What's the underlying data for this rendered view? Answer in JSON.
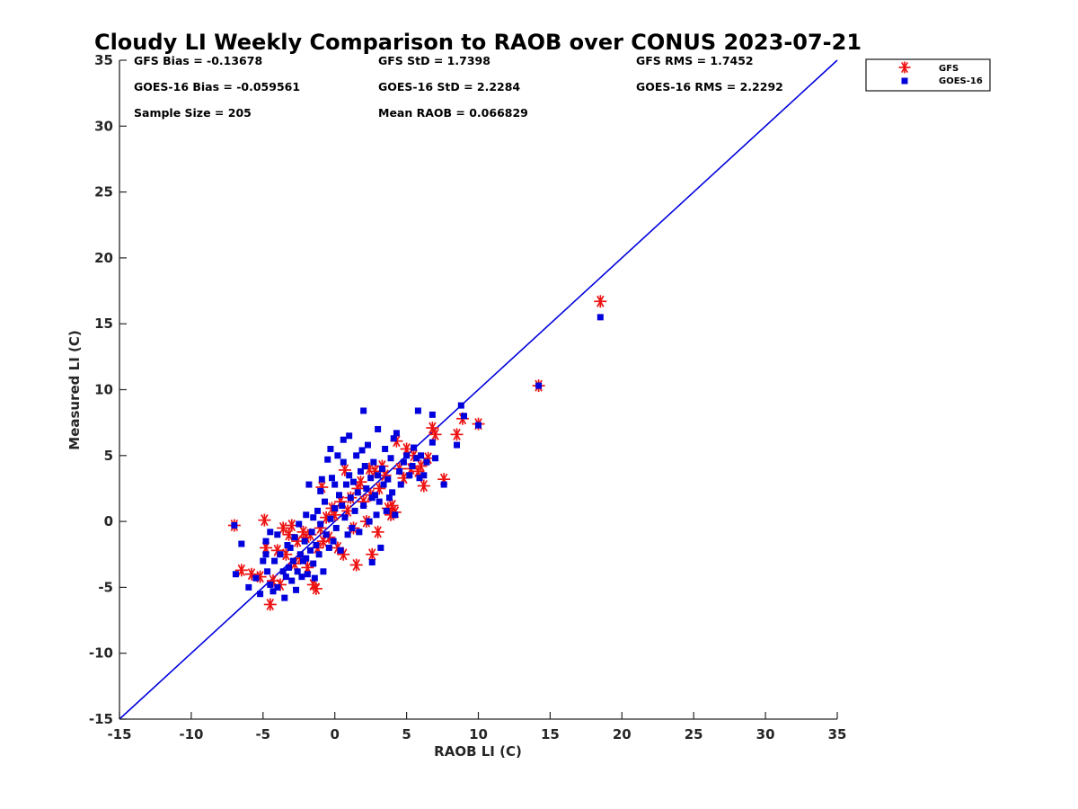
{
  "chart_data": {
    "type": "scatter",
    "title": "Cloudy LI Weekly Comparison to RAOB over CONUS 2023-07-21",
    "xlabel": "RAOB LI (C)",
    "ylabel": "Measured LI (C)",
    "xlim": [
      -15,
      35
    ],
    "ylim": [
      -15,
      35
    ],
    "xticks": [
      "-15",
      "-10",
      "-5",
      "0",
      "5",
      "10",
      "15",
      "20",
      "25",
      "30",
      "35"
    ],
    "yticks": [
      "-15",
      "-10",
      "-5",
      "0",
      "5",
      "10",
      "15",
      "20",
      "25",
      "30",
      "35"
    ],
    "grid": false,
    "legend_position": "outside-top-right",
    "stats": [
      "GFS Bias = -0.13678",
      "GFS StD = 1.7398",
      "GFS RMS = 1.7452",
      "GOES-16 Bias = -0.059561",
      "GOES-16 StD = 2.2284",
      "GOES-16 RMS = 2.2292",
      "Sample Size = 205",
      "Mean RAOB = 0.066829"
    ],
    "reference_line": {
      "x": [
        -15,
        35
      ],
      "y": [
        -15,
        35
      ],
      "color": "#0000dd"
    },
    "series": [
      {
        "name": "GFS",
        "marker": "asterisk",
        "color": "#ee1111",
        "points": [
          [
            -7,
            -0.3
          ],
          [
            -6.5,
            -3.7
          ],
          [
            -5.8,
            -4.0
          ],
          [
            -5.2,
            -4.2
          ],
          [
            -4.9,
            0.1
          ],
          [
            -4.8,
            -2.0
          ],
          [
            -4.5,
            -6.3
          ],
          [
            -4.3,
            -4.5
          ],
          [
            -4.0,
            -2.2
          ],
          [
            -3.8,
            -4.8
          ],
          [
            -3.6,
            -0.5
          ],
          [
            -3.4,
            -2.5
          ],
          [
            -3.2,
            -1.0
          ],
          [
            -3.0,
            -0.3
          ],
          [
            -2.8,
            -3.2
          ],
          [
            -2.6,
            -1.5
          ],
          [
            -2.4,
            -2.8
          ],
          [
            -2.2,
            -0.8
          ],
          [
            -2.0,
            -1.2
          ],
          [
            -1.9,
            -3.5
          ],
          [
            -1.7,
            -1.0
          ],
          [
            -1.5,
            -4.8
          ],
          [
            -1.3,
            -5.1
          ],
          [
            -1.2,
            -2.0
          ],
          [
            -1.0,
            -0.5
          ],
          [
            -0.9,
            2.6
          ],
          [
            -0.8,
            -1.5
          ],
          [
            -0.6,
            0.3
          ],
          [
            -0.4,
            -1.2
          ],
          [
            -0.2,
            1.0
          ],
          [
            0.0,
            0.5
          ],
          [
            0.2,
            -2.0
          ],
          [
            0.4,
            1.5
          ],
          [
            0.6,
            -2.5
          ],
          [
            0.7,
            3.9
          ],
          [
            0.9,
            0.8
          ],
          [
            1.1,
            1.8
          ],
          [
            1.3,
            -0.5
          ],
          [
            1.5,
            -3.3
          ],
          [
            1.6,
            2.5
          ],
          [
            1.8,
            3.0
          ],
          [
            2.0,
            1.5
          ],
          [
            2.2,
            0.0
          ],
          [
            2.4,
            4.0
          ],
          [
            2.5,
            2.0
          ],
          [
            2.6,
            -2.5
          ],
          [
            2.8,
            3.8
          ],
          [
            3.0,
            -0.8
          ],
          [
            3.1,
            2.5
          ],
          [
            3.3,
            4.2
          ],
          [
            3.5,
            3.5
          ],
          [
            3.7,
            1.0
          ],
          [
            3.9,
            0.5
          ],
          [
            4.0,
            1.2
          ],
          [
            4.2,
            0.7
          ],
          [
            4.3,
            6.1
          ],
          [
            4.5,
            4.0
          ],
          [
            4.8,
            3.3
          ],
          [
            5.0,
            5.5
          ],
          [
            5.3,
            4.0
          ],
          [
            5.5,
            5.0
          ],
          [
            5.8,
            3.8
          ],
          [
            6.0,
            4.2
          ],
          [
            6.2,
            2.7
          ],
          [
            6.5,
            4.8
          ],
          [
            6.8,
            7.1
          ],
          [
            7.0,
            6.6
          ],
          [
            7.6,
            3.2
          ],
          [
            8.5,
            6.6
          ],
          [
            8.9,
            7.8
          ],
          [
            10.0,
            7.4
          ],
          [
            14.2,
            10.3
          ],
          [
            18.5,
            16.7
          ]
        ]
      },
      {
        "name": "GOES-16",
        "marker": "square",
        "color": "#0000dd",
        "points": [
          [
            -7,
            -0.3
          ],
          [
            -6.9,
            -4.0
          ],
          [
            -6.5,
            -1.7
          ],
          [
            -6.0,
            -5.0
          ],
          [
            -5.5,
            -4.3
          ],
          [
            -5.2,
            -5.5
          ],
          [
            -5.0,
            -3.0
          ],
          [
            -4.8,
            -1.5
          ],
          [
            -4.8,
            -2.5
          ],
          [
            -4.7,
            -3.8
          ],
          [
            -4.5,
            -4.8
          ],
          [
            -4.5,
            -0.8
          ],
          [
            -4.3,
            -5.3
          ],
          [
            -4.2,
            -3.0
          ],
          [
            -4.0,
            -1.0
          ],
          [
            -4.0,
            -5.0
          ],
          [
            -3.8,
            -2.5
          ],
          [
            -3.6,
            -3.8
          ],
          [
            -3.5,
            -5.8
          ],
          [
            -3.4,
            -4.2
          ],
          [
            -3.3,
            -1.8
          ],
          [
            -3.2,
            -3.5
          ],
          [
            -3.1,
            -2.0
          ],
          [
            -3.0,
            -4.5
          ],
          [
            -2.9,
            -3.0
          ],
          [
            -2.8,
            -1.2
          ],
          [
            -2.7,
            -5.2
          ],
          [
            -2.6,
            -3.8
          ],
          [
            -2.5,
            -0.2
          ],
          [
            -2.4,
            -2.5
          ],
          [
            -2.3,
            -4.2
          ],
          [
            -2.2,
            -3.0
          ],
          [
            -2.1,
            -1.5
          ],
          [
            -2.0,
            0.5
          ],
          [
            -2.0,
            -2.8
          ],
          [
            -1.9,
            -4.0
          ],
          [
            -1.8,
            2.8
          ],
          [
            -1.7,
            -2.2
          ],
          [
            -1.6,
            -0.8
          ],
          [
            -1.5,
            0.3
          ],
          [
            -1.5,
            -3.2
          ],
          [
            -1.4,
            -4.3
          ],
          [
            -1.3,
            -1.8
          ],
          [
            -1.2,
            0.8
          ],
          [
            -1.1,
            -2.5
          ],
          [
            -1.0,
            2.3
          ],
          [
            -1.0,
            -0.2
          ],
          [
            -0.9,
            3.2
          ],
          [
            -0.8,
            -3.8
          ],
          [
            -0.7,
            1.5
          ],
          [
            -0.6,
            -1.0
          ],
          [
            -0.5,
            4.7
          ],
          [
            -0.4,
            -2.0
          ],
          [
            -0.3,
            5.5
          ],
          [
            -0.3,
            0.2
          ],
          [
            -0.2,
            3.3
          ],
          [
            -0.1,
            -1.5
          ],
          [
            0.0,
            2.8
          ],
          [
            0.0,
            1.0
          ],
          [
            0.1,
            -0.5
          ],
          [
            0.2,
            5.0
          ],
          [
            0.3,
            2.0
          ],
          [
            0.4,
            -2.2
          ],
          [
            0.5,
            1.2
          ],
          [
            0.6,
            4.5
          ],
          [
            0.6,
            6.2
          ],
          [
            0.7,
            0.3
          ],
          [
            0.8,
            2.8
          ],
          [
            0.9,
            -1.0
          ],
          [
            1.0,
            6.5
          ],
          [
            1.0,
            3.5
          ],
          [
            1.1,
            1.8
          ],
          [
            1.2,
            -0.5
          ],
          [
            1.3,
            3.0
          ],
          [
            1.4,
            0.8
          ],
          [
            1.5,
            5.0
          ],
          [
            1.6,
            2.2
          ],
          [
            1.7,
            -0.8
          ],
          [
            1.8,
            3.8
          ],
          [
            1.9,
            5.4
          ],
          [
            2.0,
            8.4
          ],
          [
            2.0,
            1.2
          ],
          [
            2.1,
            4.2
          ],
          [
            2.2,
            2.5
          ],
          [
            2.3,
            5.8
          ],
          [
            2.4,
            0.0
          ],
          [
            2.5,
            3.3
          ],
          [
            2.6,
            1.8
          ],
          [
            2.6,
            -3.1
          ],
          [
            2.7,
            4.5
          ],
          [
            2.8,
            2.0
          ],
          [
            2.9,
            0.5
          ],
          [
            3.0,
            7.0
          ],
          [
            3.0,
            3.5
          ],
          [
            3.1,
            1.5
          ],
          [
            3.2,
            -2.0
          ],
          [
            3.3,
            4.0
          ],
          [
            3.4,
            2.8
          ],
          [
            3.5,
            5.5
          ],
          [
            3.6,
            0.8
          ],
          [
            3.7,
            3.2
          ],
          [
            3.8,
            1.8
          ],
          [
            3.9,
            4.8
          ],
          [
            4.0,
            2.2
          ],
          [
            4.1,
            6.3
          ],
          [
            4.2,
            0.5
          ],
          [
            4.3,
            6.7
          ],
          [
            4.5,
            3.8
          ],
          [
            4.6,
            2.8
          ],
          [
            4.8,
            4.5
          ],
          [
            5.0,
            5.0
          ],
          [
            5.2,
            3.5
          ],
          [
            5.4,
            4.2
          ],
          [
            5.5,
            5.6
          ],
          [
            5.7,
            4.8
          ],
          [
            5.8,
            8.4
          ],
          [
            5.9,
            3.3
          ],
          [
            6.0,
            5.0
          ],
          [
            6.2,
            3.5
          ],
          [
            6.4,
            4.5
          ],
          [
            6.8,
            8.1
          ],
          [
            6.8,
            6.0
          ],
          [
            7.0,
            4.8
          ],
          [
            7.6,
            2.8
          ],
          [
            8.5,
            5.8
          ],
          [
            8.8,
            8.8
          ],
          [
            9.0,
            8.0
          ],
          [
            10.0,
            7.3
          ],
          [
            14.2,
            10.3
          ],
          [
            18.5,
            15.5
          ]
        ]
      }
    ]
  }
}
